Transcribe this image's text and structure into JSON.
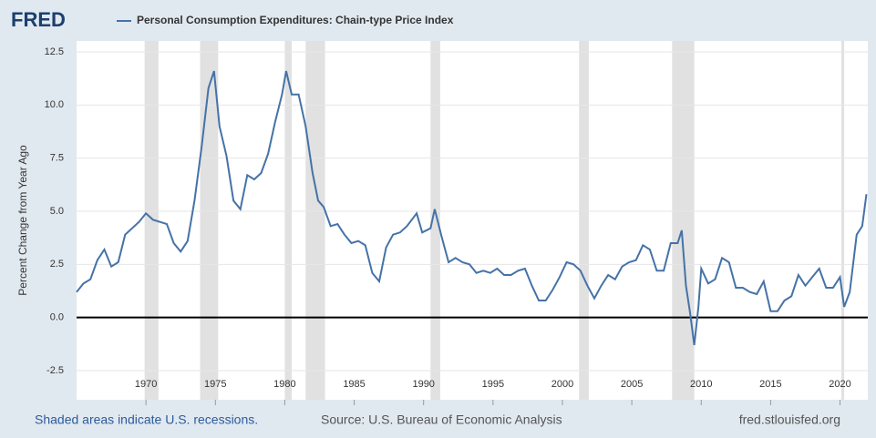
{
  "chart_data": {
    "type": "line",
    "logo": "FRED",
    "ylabel": "Percent Change from Year Ago",
    "footer_left": "Shaded areas indicate U.S. recessions.",
    "footer_center": "Source: U.S. Bureau of Economic Analysis",
    "footer_right": "fred.stlouisfed.org",
    "x": [
      1965.0,
      1965.5,
      1966.0,
      1966.5,
      1967.0,
      1967.5,
      1968.0,
      1968.5,
      1969.0,
      1969.5,
      1970.0,
      1970.5,
      1971.0,
      1971.5,
      1972.0,
      1972.5,
      1973.0,
      1973.5,
      1974.0,
      1974.5,
      1974.9,
      1975.3,
      1975.8,
      1976.3,
      1976.8,
      1977.3,
      1977.8,
      1978.3,
      1978.8,
      1979.3,
      1979.8,
      1980.1,
      1980.5,
      1981.0,
      1981.5,
      1982.0,
      1982.4,
      1982.8,
      1983.3,
      1983.8,
      1984.3,
      1984.8,
      1985.3,
      1985.8,
      1986.3,
      1986.8,
      1987.3,
      1987.8,
      1988.3,
      1988.8,
      1989.5,
      1989.9,
      1990.5,
      1990.8,
      1991.3,
      1991.8,
      1992.3,
      1992.8,
      1993.3,
      1993.8,
      1994.3,
      1994.8,
      1995.3,
      1995.8,
      1996.3,
      1996.8,
      1997.3,
      1997.8,
      1998.3,
      1998.8,
      1999.3,
      1999.8,
      2000.3,
      2000.8,
      2001.3,
      2001.8,
      2002.3,
      2002.8,
      2003.3,
      2003.8,
      2004.3,
      2004.8,
      2005.3,
      2005.8,
      2006.3,
      2006.8,
      2007.3,
      2007.8,
      2008.3,
      2008.6,
      2008.9,
      2009.2,
      2009.5,
      2009.8,
      2010.0,
      2010.5,
      2011.0,
      2011.5,
      2012.0,
      2012.5,
      2013.0,
      2013.5,
      2014.0,
      2014.5,
      2015.0,
      2015.5,
      2016.0,
      2016.5,
      2017.0,
      2017.5,
      2018.0,
      2018.5,
      2019.0,
      2019.5,
      2020.0,
      2020.3,
      2020.7,
      2021.2,
      2021.6,
      2021.9
    ],
    "series": [
      {
        "name": "Personal Consumption Expenditures: Chain-type Price Index",
        "color": "#4572a7",
        "values": [
          1.2,
          1.6,
          1.8,
          2.7,
          3.2,
          2.4,
          2.6,
          3.9,
          4.2,
          4.5,
          4.9,
          4.6,
          4.5,
          4.4,
          3.5,
          3.1,
          3.6,
          5.5,
          8.0,
          10.8,
          11.6,
          9.0,
          7.6,
          5.5,
          5.1,
          6.7,
          6.5,
          6.8,
          7.7,
          9.2,
          10.5,
          11.6,
          10.5,
          10.5,
          9.0,
          6.8,
          5.5,
          5.2,
          4.3,
          4.4,
          3.9,
          3.5,
          3.6,
          3.4,
          2.1,
          1.7,
          3.3,
          3.9,
          4.0,
          4.3,
          4.9,
          4.0,
          4.2,
          5.1,
          3.8,
          2.6,
          2.8,
          2.6,
          2.5,
          2.1,
          2.2,
          2.1,
          2.3,
          2.0,
          2.0,
          2.2,
          2.3,
          1.5,
          0.8,
          0.8,
          1.3,
          1.9,
          2.6,
          2.5,
          2.2,
          1.5,
          0.9,
          1.5,
          2.0,
          1.8,
          2.4,
          2.6,
          2.7,
          3.4,
          3.2,
          2.2,
          2.2,
          3.5,
          3.5,
          4.1,
          1.5,
          0.2,
          -1.3,
          0.5,
          2.3,
          1.6,
          1.8,
          2.8,
          2.6,
          1.4,
          1.4,
          1.2,
          1.1,
          1.7,
          0.3,
          0.3,
          0.8,
          1.0,
          2.0,
          1.5,
          1.9,
          2.3,
          1.4,
          1.4,
          1.9,
          0.5,
          1.2,
          3.9,
          4.3,
          5.8
        ]
      }
    ],
    "recessions": [
      [
        1969.9,
        1970.9
      ],
      [
        1973.9,
        1975.2
      ],
      [
        1980.0,
        1980.5
      ],
      [
        1981.5,
        1982.9
      ],
      [
        1990.5,
        1991.2
      ],
      [
        2001.2,
        2001.9
      ],
      [
        2007.9,
        2009.5
      ],
      [
        2020.1,
        2020.3
      ]
    ],
    "xlim": [
      1965,
      2022
    ],
    "xticks": [
      1970,
      1975,
      1980,
      1985,
      1990,
      1995,
      2000,
      2005,
      2010,
      2015,
      2020
    ],
    "ylim": [
      -2.5,
      12.5
    ],
    "yticks": [
      12.5,
      {
        "value": 10,
        "label": "10.0"
      },
      7.5,
      {
        "value": 5,
        "label": "5.0"
      },
      2.5,
      {
        "value": 0,
        "label": "0.0"
      },
      -2.5
    ],
    "grid": true
  }
}
